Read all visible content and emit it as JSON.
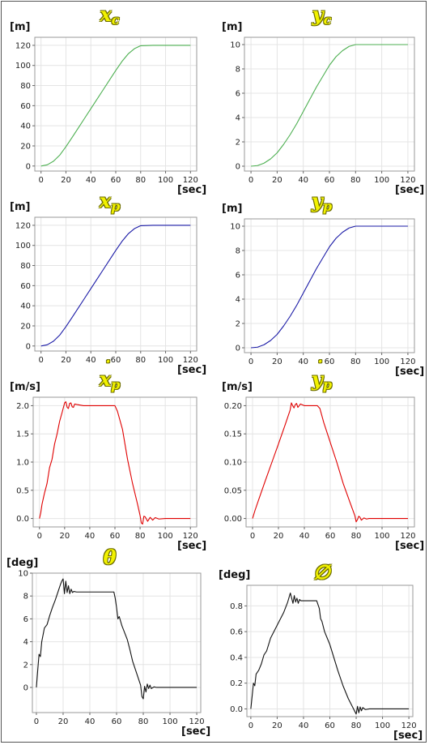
{
  "chart_data": [
    {
      "id": "xc",
      "type": "line",
      "title": "x",
      "title_sub": "c",
      "title_dot": false,
      "ylabel": "[m]",
      "xlabel": "[sec]",
      "xlim": [
        -5,
        125
      ],
      "ylim": [
        -5,
        128
      ],
      "xticks": [
        0,
        20,
        40,
        60,
        80,
        100,
        120
      ],
      "yticks": [
        0,
        20,
        40,
        60,
        80,
        100,
        120
      ],
      "ytick_labels": [
        "0",
        "20",
        "40",
        "60",
        "80",
        "100",
        "120"
      ],
      "color": "#4caf50",
      "series": [
        {
          "x": [
            0,
            5,
            10,
            15,
            20,
            25,
            30,
            35,
            40,
            45,
            50,
            55,
            60,
            65,
            70,
            75,
            80,
            90,
            100,
            110,
            120
          ],
          "values": [
            0,
            1.2,
            4.8,
            10.8,
            19.2,
            28.5,
            38,
            47.5,
            57,
            66.5,
            76,
            85.5,
            95,
            104,
            111.5,
            116.7,
            119.6,
            120,
            120,
            120,
            120
          ]
        }
      ],
      "grid": true
    },
    {
      "id": "yc",
      "type": "line",
      "title": "y",
      "title_sub": "c",
      "title_dot": false,
      "ylabel": "[m]",
      "xlabel": "[sec]",
      "xlim": [
        -5,
        125
      ],
      "ylim": [
        -0.4,
        10.6
      ],
      "xticks": [
        0,
        20,
        40,
        60,
        80,
        100,
        120
      ],
      "yticks": [
        0,
        2,
        4,
        6,
        8,
        10
      ],
      "ytick_labels": [
        "0",
        "2",
        "4",
        "6",
        "8",
        "10"
      ],
      "color": "#4caf50",
      "series": [
        {
          "x": [
            0,
            5,
            10,
            15,
            20,
            25,
            30,
            35,
            40,
            45,
            50,
            55,
            60,
            65,
            70,
            75,
            80,
            90,
            100,
            110,
            120
          ],
          "values": [
            0,
            0.05,
            0.25,
            0.6,
            1.1,
            1.8,
            2.6,
            3.5,
            4.5,
            5.5,
            6.5,
            7.4,
            8.3,
            9.0,
            9.5,
            9.85,
            10,
            10,
            10,
            10,
            10
          ]
        }
      ],
      "grid": true
    },
    {
      "id": "xp",
      "type": "line",
      "title": "x",
      "title_sub": "p",
      "title_dot": false,
      "ylabel": "[m]",
      "xlabel": "[sec]",
      "xlim": [
        -5,
        125
      ],
      "ylim": [
        -5,
        128
      ],
      "xticks": [
        0,
        20,
        40,
        60,
        80,
        100,
        120
      ],
      "yticks": [
        0,
        20,
        40,
        60,
        80,
        100,
        120
      ],
      "ytick_labels": [
        "0",
        "20",
        "40",
        "60",
        "80",
        "100",
        "120"
      ],
      "color": "#1a1aa6",
      "series": [
        {
          "x": [
            0,
            5,
            10,
            15,
            20,
            25,
            30,
            35,
            40,
            45,
            50,
            55,
            60,
            65,
            70,
            75,
            80,
            90,
            100,
            110,
            120
          ],
          "values": [
            0,
            1.2,
            4.8,
            10.8,
            19.2,
            28.5,
            38,
            47.5,
            57,
            66.5,
            76,
            85.5,
            95,
            104,
            111.5,
            116.7,
            119.6,
            120,
            120,
            120,
            120
          ]
        }
      ],
      "grid": true
    },
    {
      "id": "yp",
      "type": "line",
      "title": "y",
      "title_sub": "p",
      "title_dot": false,
      "ylabel": "[m]",
      "xlabel": "[sec]",
      "xlim": [
        -5,
        125
      ],
      "ylim": [
        -0.4,
        10.6
      ],
      "xticks": [
        0,
        20,
        40,
        60,
        80,
        100,
        120
      ],
      "yticks": [
        0,
        2,
        4,
        6,
        8,
        10
      ],
      "ytick_labels": [
        "0",
        "2",
        "4",
        "6",
        "8",
        "10"
      ],
      "color": "#1a1aa6",
      "series": [
        {
          "x": [
            0,
            5,
            10,
            15,
            20,
            25,
            30,
            35,
            40,
            45,
            50,
            55,
            60,
            65,
            70,
            75,
            80,
            90,
            100,
            110,
            120
          ],
          "values": [
            0,
            0.05,
            0.25,
            0.6,
            1.1,
            1.8,
            2.6,
            3.5,
            4.5,
            5.5,
            6.5,
            7.4,
            8.3,
            9.0,
            9.5,
            9.85,
            10,
            10,
            10,
            10,
            10
          ]
        }
      ],
      "grid": true
    },
    {
      "id": "xpdot",
      "type": "line",
      "title": "x",
      "title_sub": "p",
      "title_dot": true,
      "ylabel": "[m/s]",
      "xlabel": "[sec]",
      "xlim": [
        -5,
        125
      ],
      "ylim": [
        -0.15,
        2.15
      ],
      "xticks": [
        0,
        20,
        40,
        60,
        80,
        100,
        120
      ],
      "yticks": [
        0,
        0.5,
        1,
        1.5,
        2
      ],
      "ytick_labels": [
        "0.0",
        "0.5",
        "1.0",
        "1.5",
        "2.0"
      ],
      "color": "#e00000",
      "series": [
        {
          "x": [
            0,
            1,
            2,
            4,
            6,
            8,
            10,
            12,
            14,
            16,
            18,
            20,
            21,
            22,
            23,
            24,
            25,
            26,
            27,
            28,
            30,
            35,
            40,
            50,
            60,
            62,
            66,
            70,
            74,
            78,
            80,
            81,
            82,
            83,
            84,
            86,
            88,
            90,
            92,
            95,
            100,
            110,
            120
          ],
          "values": [
            0,
            0.1,
            0.25,
            0.45,
            0.62,
            0.9,
            1.05,
            1.32,
            1.5,
            1.72,
            1.88,
            2.05,
            2.07,
            1.97,
            1.95,
            2.04,
            2.05,
            1.98,
            1.97,
            2.03,
            2.02,
            2.0,
            2.0,
            2.0,
            2.0,
            1.9,
            1.58,
            1.05,
            0.62,
            0.25,
            0.05,
            -0.08,
            -0.1,
            0.04,
            0.03,
            -0.05,
            0.02,
            -0.03,
            0.015,
            -0.01,
            0.0,
            0.0,
            0.0
          ]
        }
      ],
      "grid": true
    },
    {
      "id": "ypdot",
      "type": "line",
      "title": "y",
      "title_sub": "p",
      "title_dot": true,
      "ylabel": "[m/s]",
      "xlabel": "[sec]",
      "xlim": [
        -5,
        125
      ],
      "ylim": [
        -0.015,
        0.215
      ],
      "xticks": [
        0,
        20,
        40,
        60,
        80,
        100,
        120
      ],
      "yticks": [
        0,
        0.05,
        0.1,
        0.15,
        0.2
      ],
      "ytick_labels": [
        "0.00",
        "0.05",
        "0.10",
        "0.15",
        "0.20"
      ],
      "color": "#e00000",
      "series": [
        {
          "x": [
            0,
            2,
            5,
            10,
            15,
            20,
            25,
            29,
            30,
            31,
            32,
            33,
            34,
            35,
            36,
            37,
            40,
            45,
            50,
            52,
            55,
            60,
            65,
            70,
            75,
            79,
            80,
            81,
            82,
            83,
            84,
            86,
            88,
            90,
            95,
            100,
            110,
            120
          ],
          "values": [
            0,
            0.015,
            0.035,
            0.068,
            0.1,
            0.132,
            0.165,
            0.192,
            0.205,
            0.2,
            0.196,
            0.202,
            0.204,
            0.197,
            0.2,
            0.203,
            0.2,
            0.2,
            0.2,
            0.195,
            0.17,
            0.135,
            0.1,
            0.062,
            0.03,
            0.005,
            -0.006,
            -0.002,
            0.004,
            0.002,
            -0.003,
            0.001,
            -0.001,
            0.0,
            0.0,
            0.0,
            0.0,
            0.0
          ]
        }
      ],
      "grid": true
    },
    {
      "id": "theta",
      "type": "line",
      "title": "θ",
      "title_sub": "",
      "title_dot": false,
      "ylabel": "[deg]",
      "xlabel": "[sec]",
      "xlim": [
        -3,
        123
      ],
      "ylim": [
        -2.2,
        10
      ],
      "xticks": [
        0,
        20,
        40,
        60,
        80,
        100,
        120
      ],
      "yticks": [
        0,
        2,
        4,
        6,
        8,
        10
      ],
      "ytick_labels": [
        "0",
        "2",
        "4",
        "6",
        "8",
        "10"
      ],
      "color": "#111111",
      "series": [
        {
          "x": [
            0,
            1,
            2,
            3,
            4,
            6,
            8,
            10,
            12,
            14,
            16,
            18,
            19,
            20,
            21,
            22,
            23,
            24,
            25,
            26,
            27,
            28,
            30,
            40,
            50,
            58,
            59,
            60,
            61,
            62,
            64,
            66,
            68,
            70,
            72,
            74,
            76,
            78,
            79,
            80,
            81,
            82,
            83,
            84,
            85,
            86,
            88,
            90,
            95,
            100,
            110,
            120
          ],
          "values": [
            0,
            1.5,
            2.9,
            2.7,
            4.0,
            5.2,
            5.5,
            6.3,
            7.0,
            7.6,
            8.3,
            9.0,
            9.3,
            9.5,
            8.2,
            9.3,
            8.3,
            8.9,
            8.2,
            8.6,
            8.3,
            8.4,
            8.35,
            8.35,
            8.35,
            8.35,
            7.8,
            7.0,
            6.0,
            6.2,
            5.4,
            4.8,
            4.2,
            3.3,
            2.3,
            1.6,
            0.9,
            0.2,
            -0.8,
            -1.0,
            0.1,
            -0.4,
            0.3,
            -0.1,
            0.2,
            -0.1,
            0.05,
            0.0,
            0.0,
            0.0,
            0.0,
            0.0
          ]
        }
      ],
      "grid": true
    },
    {
      "id": "phi",
      "type": "line",
      "title": "∅",
      "title_sub": "",
      "title_dot": false,
      "ylabel": "[deg]",
      "xlabel": "[sec]",
      "xlim": [
        -3,
        123
      ],
      "ylim": [
        -0.06,
        0.96
      ],
      "xticks": [
        0,
        20,
        40,
        60,
        80,
        100,
        120
      ],
      "yticks": [
        0,
        0.2,
        0.4,
        0.6,
        0.8
      ],
      "ytick_labels": [
        "0.0",
        "0.2",
        "0.4",
        "0.6",
        "0.8"
      ],
      "color": "#111111",
      "series": [
        {
          "x": [
            0,
            2,
            3,
            4,
            6,
            8,
            10,
            12,
            15,
            20,
            25,
            28,
            30,
            31,
            32,
            33,
            34,
            35,
            36,
            37,
            38,
            40,
            45,
            50,
            52,
            53,
            54,
            56,
            58,
            60,
            63,
            66,
            70,
            74,
            78,
            80,
            81,
            82,
            83,
            84,
            85,
            87,
            90,
            95,
            100,
            110,
            120
          ],
          "values": [
            0,
            0.2,
            0.18,
            0.27,
            0.3,
            0.35,
            0.42,
            0.45,
            0.55,
            0.65,
            0.75,
            0.83,
            0.9,
            0.86,
            0.82,
            0.88,
            0.83,
            0.86,
            0.82,
            0.85,
            0.84,
            0.84,
            0.84,
            0.84,
            0.78,
            0.7,
            0.68,
            0.6,
            0.55,
            0.5,
            0.4,
            0.3,
            0.18,
            0.08,
            0.0,
            -0.04,
            0.02,
            -0.03,
            0.015,
            -0.015,
            0.01,
            -0.005,
            0.0,
            0.0,
            0.0,
            0.0,
            0.0
          ]
        }
      ],
      "grid": true
    }
  ]
}
